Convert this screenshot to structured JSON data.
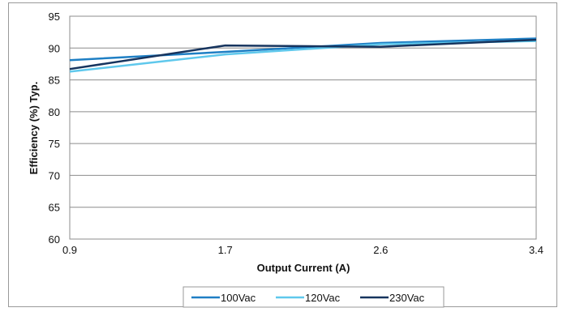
{
  "chart_data": {
    "type": "line",
    "xlabel": "Output Current (A)",
    "ylabel": "Efficiency (%) Typ.",
    "x_ticks": [
      "0.9",
      "1.7",
      "2.6",
      "3.4"
    ],
    "y_ticks": [
      "95",
      "90",
      "85",
      "80",
      "75",
      "70",
      "65",
      "60"
    ],
    "ylim": [
      60,
      95
    ],
    "grid": "horizontal",
    "legend_position": "bottom",
    "x": [
      0.9,
      1.7,
      2.6,
      3.4
    ],
    "series": [
      {
        "name": "100Vac",
        "color": "#1f7fc4",
        "values": [
          88.1,
          89.4,
          90.8,
          91.5
        ]
      },
      {
        "name": "120Vac",
        "color": "#5fc8ec",
        "values": [
          86.3,
          89.0,
          90.6,
          91.1
        ]
      },
      {
        "name": "230Vac",
        "color": "#16345e",
        "values": [
          86.7,
          90.4,
          90.2,
          91.3
        ]
      }
    ]
  }
}
